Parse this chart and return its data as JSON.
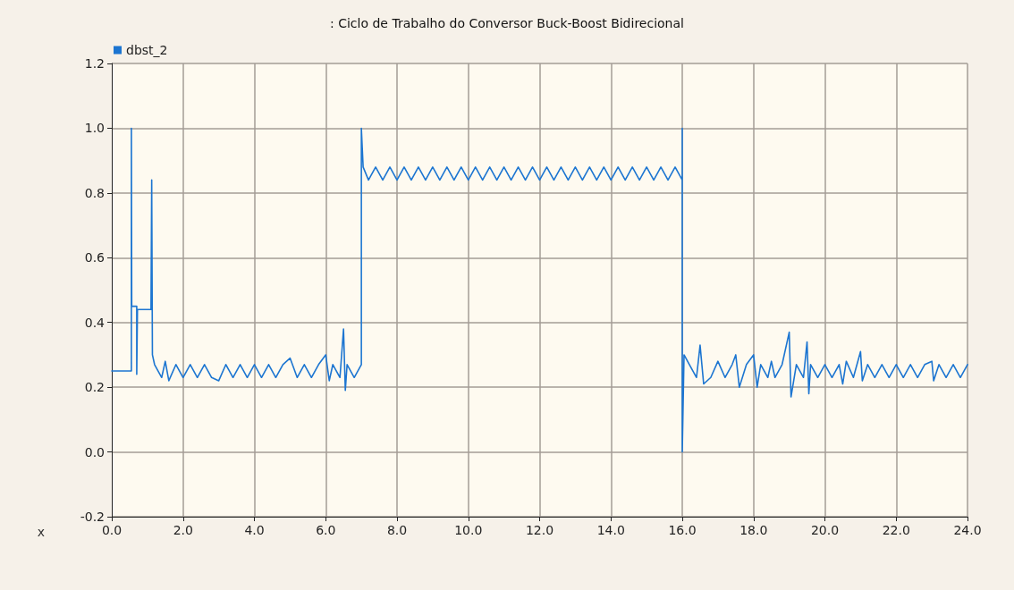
{
  "chart_data": {
    "type": "line",
    "title": ": Ciclo de Trabalho do Conversor Buck-Boost Bidirecional",
    "xlabel": "x",
    "x": [
      0,
      0.55,
      0.55,
      0.56,
      0.7,
      0.7,
      0.72,
      1.1,
      1.12,
      1.14,
      1.2,
      1.4,
      1.5,
      1.6,
      1.8,
      2.0,
      2.2,
      2.4,
      2.6,
      2.8,
      3.0,
      3.2,
      3.4,
      3.6,
      3.8,
      4.0,
      4.2,
      4.4,
      4.6,
      4.8,
      5.0,
      5.2,
      5.4,
      5.6,
      5.8,
      6.0,
      6.1,
      6.2,
      6.4,
      6.5,
      6.55,
      6.6,
      6.8,
      7.0,
      7.0,
      7.05,
      7.2,
      7.4,
      7.6,
      7.8,
      8.0,
      8.2,
      8.4,
      8.6,
      8.8,
      9.0,
      9.2,
      9.4,
      9.6,
      9.8,
      10.0,
      10.2,
      10.4,
      10.6,
      10.8,
      11.0,
      11.2,
      11.4,
      11.6,
      11.8,
      12.0,
      12.2,
      12.4,
      12.6,
      12.8,
      13.0,
      13.2,
      13.4,
      13.6,
      13.8,
      14.0,
      14.2,
      14.4,
      14.6,
      14.8,
      15.0,
      15.2,
      15.4,
      15.6,
      15.8,
      16.0,
      16.0,
      16.0,
      16.05,
      16.2,
      16.4,
      16.5,
      16.6,
      16.8,
      17.0,
      17.2,
      17.4,
      17.5,
      17.6,
      17.8,
      18.0,
      18.1,
      18.2,
      18.4,
      18.5,
      18.6,
      18.8,
      19.0,
      19.05,
      19.2,
      19.4,
      19.5,
      19.55,
      19.6,
      19.8,
      20.0,
      20.2,
      20.4,
      20.5,
      20.6,
      20.8,
      21.0,
      21.05,
      21.2,
      21.4,
      21.6,
      21.8,
      22.0,
      22.2,
      22.4,
      22.6,
      22.8,
      23.0,
      23.05,
      23.2,
      23.4,
      23.6,
      23.8,
      24.0
    ],
    "series": [
      {
        "name": "dbst_2",
        "color": "#1c75d1",
        "values": [
          0.25,
          0.25,
          1.0,
          0.45,
          0.45,
          0.24,
          0.44,
          0.44,
          0.84,
          0.3,
          0.27,
          0.23,
          0.28,
          0.22,
          0.27,
          0.23,
          0.27,
          0.23,
          0.27,
          0.23,
          0.22,
          0.27,
          0.23,
          0.27,
          0.23,
          0.27,
          0.23,
          0.27,
          0.23,
          0.27,
          0.29,
          0.23,
          0.27,
          0.23,
          0.27,
          0.3,
          0.22,
          0.27,
          0.23,
          0.38,
          0.19,
          0.27,
          0.23,
          0.27,
          1.0,
          0.88,
          0.84,
          0.88,
          0.84,
          0.88,
          0.84,
          0.88,
          0.84,
          0.88,
          0.84,
          0.88,
          0.84,
          0.88,
          0.84,
          0.88,
          0.84,
          0.88,
          0.84,
          0.88,
          0.84,
          0.88,
          0.84,
          0.88,
          0.84,
          0.88,
          0.84,
          0.88,
          0.84,
          0.88,
          0.84,
          0.88,
          0.84,
          0.88,
          0.84,
          0.88,
          0.84,
          0.88,
          0.84,
          0.88,
          0.84,
          0.88,
          0.84,
          0.88,
          0.84,
          0.88,
          0.84,
          1.0,
          0.0,
          0.3,
          0.27,
          0.23,
          0.33,
          0.21,
          0.23,
          0.28,
          0.23,
          0.27,
          0.3,
          0.2,
          0.27,
          0.3,
          0.2,
          0.27,
          0.23,
          0.28,
          0.23,
          0.27,
          0.37,
          0.17,
          0.27,
          0.23,
          0.34,
          0.18,
          0.27,
          0.23,
          0.27,
          0.23,
          0.27,
          0.21,
          0.28,
          0.23,
          0.31,
          0.22,
          0.27,
          0.23,
          0.27,
          0.23,
          0.27,
          0.23,
          0.27,
          0.23,
          0.27,
          0.28,
          0.22,
          0.27,
          0.23,
          0.27,
          0.23,
          0.27
        ]
      }
    ],
    "xlim": [
      0,
      24
    ],
    "xticks": [
      {
        "value": 0,
        "label": "0.0"
      },
      {
        "value": 2,
        "label": "2.0"
      },
      {
        "value": 4,
        "label": "4.0"
      },
      {
        "value": 6,
        "label": "6.0"
      },
      {
        "value": 8,
        "label": "8.0"
      },
      {
        "value": 10,
        "label": "10.0"
      },
      {
        "value": 12,
        "label": "12.0"
      },
      {
        "value": 14,
        "label": "14.0"
      },
      {
        "value": 16,
        "label": "16.0"
      },
      {
        "value": 18,
        "label": "18.0"
      },
      {
        "value": 20,
        "label": "20.0"
      },
      {
        "value": 22,
        "label": "22.0"
      },
      {
        "value": 24,
        "label": "24.0"
      }
    ],
    "ylim": [
      -0.2,
      1.2
    ],
    "yticks": [
      -0.2,
      {
        "value": 0,
        "label": "0.0"
      },
      0.2,
      0.4,
      0.6,
      0.8,
      {
        "value": 1,
        "label": "1.0"
      },
      1.2
    ],
    "grid": true,
    "legend": "top left",
    "marker": "none",
    "line_style": "solid"
  }
}
